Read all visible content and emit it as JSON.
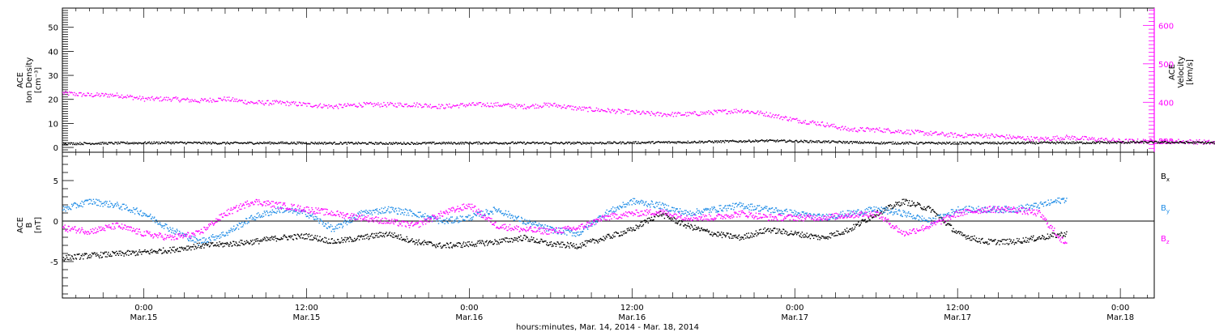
{
  "colors": {
    "black": "#000000",
    "magenta": "#ff00ff",
    "blue": "#1e8ce6"
  },
  "chart_data": [
    {
      "type": "scatter",
      "panel": "top",
      "ylabel_lines": [
        "ACE",
        "Ion Density",
        "[cm⁻³]"
      ],
      "y2label_lines": [
        "ACE",
        "Velocity",
        "[km/s]"
      ],
      "ylim": [
        -2,
        58
      ],
      "y_ticks": [
        0,
        10,
        20,
        30,
        40,
        50
      ],
      "y2lim": [
        270,
        645
      ],
      "y2_ticks": [
        300,
        400,
        500,
        600
      ],
      "series": [
        {
          "axis": "left",
          "color": "black",
          "x": [
            0,
            4,
            8,
            12,
            16,
            20,
            24,
            28,
            32,
            36,
            40,
            44,
            48,
            52,
            56,
            60,
            64,
            68,
            72,
            76,
            80,
            84,
            86.5
          ],
          "y": [
            1.8,
            2.0,
            2.2,
            2.0,
            2.1,
            2.0,
            1.9,
            2.0,
            2.1,
            2.0,
            2.1,
            2.3,
            2.6,
            3.0,
            2.6,
            2.1,
            2.0,
            2.0,
            2.1,
            2.2,
            2.4,
            2.2,
            2.0
          ]
        },
        {
          "axis": "right",
          "color": "magenta",
          "x": [
            0,
            2,
            4,
            6,
            8,
            10,
            12,
            14,
            16,
            18,
            20,
            22,
            24,
            26,
            28,
            30,
            32,
            34,
            36,
            38,
            40,
            42,
            44,
            46,
            48,
            50,
            52,
            54,
            56,
            58,
            60,
            62,
            64,
            66,
            68,
            70,
            72,
            74,
            76,
            78,
            80,
            82,
            84,
            86.5
          ],
          "y": [
            425,
            420,
            420,
            410,
            410,
            405,
            410,
            400,
            400,
            395,
            390,
            395,
            395,
            395,
            390,
            395,
            395,
            390,
            395,
            385,
            380,
            375,
            370,
            370,
            375,
            380,
            370,
            355,
            345,
            330,
            330,
            325,
            320,
            315,
            315,
            310,
            305,
            310,
            305,
            300,
            300,
            300,
            298,
            292
          ]
        }
      ]
    },
    {
      "type": "scatter",
      "panel": "bottom",
      "ylabel_lines": [
        "ACE",
        "B",
        "[nT]"
      ],
      "ylim": [
        -9.5,
        8.5
      ],
      "y_ticks": [
        -5,
        0,
        5
      ],
      "x_ticks": [
        {
          "hour": 6,
          "time": "0:00",
          "date": "Mar.15"
        },
        {
          "hour": 18,
          "time": "12:00",
          "date": "Mar.15"
        },
        {
          "hour": 30,
          "time": "0:00",
          "date": "Mar.16"
        },
        {
          "hour": 42,
          "time": "12:00",
          "date": "Mar.16"
        },
        {
          "hour": 54,
          "time": "0:00",
          "date": "Mar.17"
        },
        {
          "hour": 66,
          "time": "12:00",
          "date": "Mar.17"
        },
        {
          "hour": 78,
          "time": "0:00",
          "date": "Mar.18"
        }
      ],
      "xlim": [
        0,
        80.5
      ],
      "xlabel": "hours:minutes, Mar. 14, 2014 - Mar. 18, 2014",
      "legend": [
        {
          "label": "B",
          "sub": "x",
          "color": "black"
        },
        {
          "label": "B",
          "sub": "y",
          "color": "blue"
        },
        {
          "label": "B",
          "sub": "z",
          "color": "magenta"
        }
      ],
      "series": [
        {
          "name": "Bx",
          "color": "black",
          "x": [
            0,
            2,
            4,
            6,
            8,
            10,
            12,
            14,
            16,
            18,
            20,
            22,
            24,
            26,
            28,
            30,
            32,
            34,
            36,
            38,
            40,
            42,
            44,
            46,
            48,
            50,
            52,
            54,
            56,
            58,
            60,
            62,
            64,
            66,
            68,
            70,
            72,
            74
          ],
          "y": [
            -4.5,
            -4.2,
            -4.0,
            -3.8,
            -3.5,
            -3.0,
            -2.8,
            -2.5,
            -2.0,
            -1.8,
            -2.5,
            -2.0,
            -1.5,
            -2.5,
            -3.0,
            -2.8,
            -2.5,
            -2.0,
            -2.8,
            -3.0,
            -2.0,
            -1.0,
            1.0,
            -0.5,
            -1.5,
            -2.0,
            -1.0,
            -1.5,
            -2.0,
            -1.0,
            1.0,
            2.5,
            1.5,
            -1.5,
            -2.5,
            -2.5,
            -2.0,
            -1.5
          ]
        },
        {
          "name": "By",
          "color": "blue",
          "x": [
            0,
            2,
            4,
            6,
            8,
            10,
            12,
            14,
            16,
            18,
            20,
            22,
            24,
            26,
            28,
            30,
            32,
            34,
            36,
            38,
            40,
            42,
            44,
            46,
            48,
            50,
            52,
            54,
            56,
            58,
            60,
            62,
            64,
            66,
            68,
            70,
            72,
            74
          ],
          "y": [
            1.5,
            2.5,
            2.0,
            1.0,
            -1.0,
            -2.5,
            -1.5,
            0.5,
            1.5,
            1.0,
            -1.0,
            1.0,
            1.5,
            1.0,
            0.0,
            0.5,
            1.5,
            0.0,
            -1.0,
            -1.5,
            1.0,
            2.5,
            2.0,
            1.0,
            1.5,
            2.0,
            1.5,
            1.0,
            0.5,
            1.0,
            1.5,
            1.0,
            0.0,
            1.5,
            1.5,
            1.5,
            2.0,
            2.8
          ]
        },
        {
          "name": "Bz",
          "color": "magenta",
          "x": [
            0,
            2,
            4,
            6,
            8,
            10,
            12,
            14,
            16,
            18,
            20,
            22,
            24,
            26,
            28,
            30,
            32,
            34,
            36,
            38,
            40,
            42,
            44,
            46,
            48,
            50,
            52,
            54,
            56,
            58,
            60,
            62,
            64,
            66,
            68,
            70,
            72,
            74
          ],
          "y": [
            -0.8,
            -1.2,
            -0.5,
            -1.5,
            -2.0,
            -1.5,
            1.0,
            2.5,
            2.0,
            1.5,
            1.0,
            0.5,
            0.0,
            -0.5,
            1.0,
            2.0,
            -0.5,
            -1.0,
            -1.2,
            -0.8,
            0.5,
            1.0,
            1.2,
            0.5,
            0.5,
            1.0,
            0.5,
            0.5,
            0.5,
            0.8,
            1.0,
            -1.5,
            -0.5,
            1.0,
            1.5,
            1.5,
            1.0,
            -3.0
          ]
        }
      ]
    }
  ]
}
